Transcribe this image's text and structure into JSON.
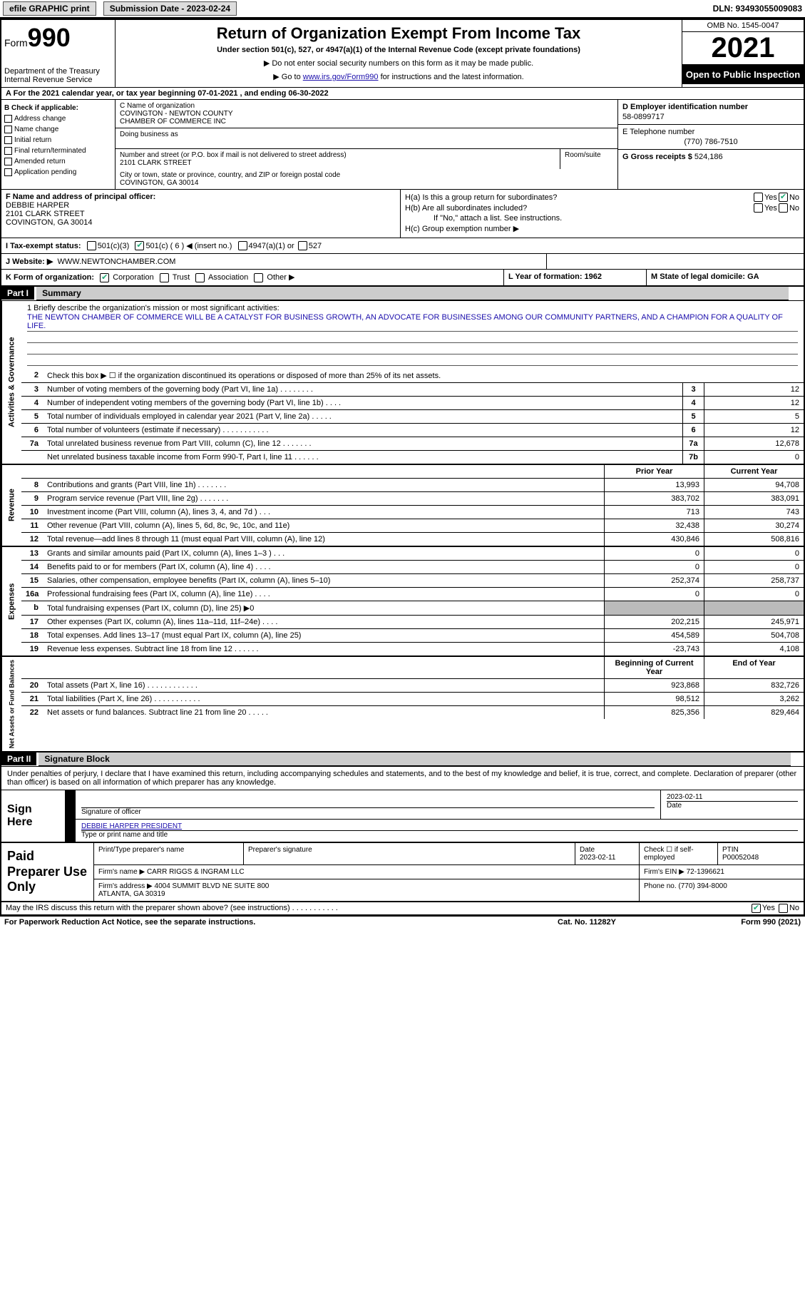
{
  "hdr": {
    "efile": "efile GRAPHIC print",
    "sub_label": "Submission Date - 2023-02-24",
    "dln": "DLN: 93493055009083"
  },
  "top": {
    "form_word": "Form",
    "form_num": "990",
    "dept": "Department of the Treasury\nInternal Revenue Service",
    "title": "Return of Organization Exempt From Income Tax",
    "subtitle": "Under section 501(c), 527, or 4947(a)(1) of the Internal Revenue Code (except private foundations)",
    "note1": "▶ Do not enter social security numbers on this form as it may be made public.",
    "note2_pre": "▶ Go to ",
    "note2_link": "www.irs.gov/Form990",
    "note2_post": " for instructions and the latest information.",
    "omb": "OMB No. 1545-0047",
    "year": "2021",
    "inspect": "Open to Public Inspection"
  },
  "rowA": "A For the 2021 calendar year, or tax year beginning 07-01-2021    , and ending 06-30-2022",
  "colB": {
    "hdr": "B Check if applicable:",
    "opts": [
      "Address change",
      "Name change",
      "Initial return",
      "Final return/terminated",
      "Amended return",
      "Application pending"
    ]
  },
  "colC": {
    "name_lbl": "C Name of organization",
    "name": "COVINGTON - NEWTON COUNTY\nCHAMBER OF COMMERCE INC",
    "dba_lbl": "Doing business as",
    "addr_lbl": "Number and street (or P.O. box if mail is not delivered to street address)",
    "addr": "2101 CLARK STREET",
    "room_lbl": "Room/suite",
    "city_lbl": "City or town, state or province, country, and ZIP or foreign postal code",
    "city": "COVINGTON, GA  30014"
  },
  "colD": {
    "ein_lbl": "D Employer identification number",
    "ein": "58-0899717",
    "tel_lbl": "E Telephone number",
    "tel": "(770) 786-7510",
    "gross_lbl": "G Gross receipts $",
    "gross": "524,186"
  },
  "blockF": {
    "lbl": "F Name and address of principal officer:",
    "name": "DEBBIE HARPER",
    "addr1": "2101 CLARK STREET",
    "addr2": "COVINGTON, GA  30014"
  },
  "blockH": {
    "a": "H(a)  Is this a group return for subordinates?",
    "b": "H(b)  Are all subordinates included?",
    "b_note": "If \"No,\" attach a list. See instructions.",
    "c": "H(c)  Group exemption number ▶",
    "yes": "Yes",
    "no": "No"
  },
  "rowI": {
    "lbl": "I   Tax-exempt status:",
    "o1": "501(c)(3)",
    "o2": "501(c) ( 6 ) ◀ (insert no.)",
    "o3": "4947(a)(1) or",
    "o4": "527"
  },
  "rowJ": {
    "lbl": "J   Website: ▶",
    "val": "WWW.NEWTONCHAMBER.COM"
  },
  "rowK": {
    "lbl": "K Form of organization:",
    "opts": [
      "Corporation",
      "Trust",
      "Association",
      "Other ▶"
    ],
    "l": "L Year of formation: 1962",
    "m": "M State of legal domicile: GA"
  },
  "part1": {
    "tag": "Part I",
    "title": "Summary"
  },
  "mission": {
    "lbl": "1   Briefly describe the organization's mission or most significant activities:",
    "text": "THE NEWTON CHAMBER OF COMMERCE WILL BE A CATALYST FOR BUSINESS GROWTH, AN ADVOCATE FOR BUSINESSES AMONG OUR COMMUNITY PARTNERS, AND A CHAMPION FOR A QUALITY OF LIFE."
  },
  "line2": "Check this box ▶ ☐ if the organization discontinued its operations or disposed of more than 25% of its net assets.",
  "gov_lines": [
    {
      "n": "3",
      "t": "Number of voting members of the governing body (Part VI, line 1a)  .   .   .   .   .   .   .   .",
      "b": "3",
      "v": "12"
    },
    {
      "n": "4",
      "t": "Number of independent voting members of the governing body (Part VI, line 1b)  .   .   .   .",
      "b": "4",
      "v": "12"
    },
    {
      "n": "5",
      "t": "Total number of individuals employed in calendar year 2021 (Part V, line 2a)  .   .   .   .   .",
      "b": "5",
      "v": "5"
    },
    {
      "n": "6",
      "t": "Total number of volunteers (estimate if necessary)   .   .   .   .   .   .   .   .   .   .   .",
      "b": "6",
      "v": "12"
    },
    {
      "n": "7a",
      "t": "Total unrelated business revenue from Part VIII, column (C), line 12   .   .   .   .   .   .   .",
      "b": "7a",
      "v": "12,678"
    },
    {
      "n": "",
      "t": "Net unrelated business taxable income from Form 990-T, Part I, line 11  .   .   .   .   .   .",
      "b": "7b",
      "v": "0"
    }
  ],
  "section_hdrs": {
    "gov": "Activities & Governance",
    "rev": "Revenue",
    "exp": "Expenses",
    "net": "Net Assets or Fund Balances"
  },
  "col_hdrs": {
    "prior": "Prior Year",
    "curr": "Current Year",
    "beg": "Beginning of Current Year",
    "end": "End of Year"
  },
  "rev_lines": [
    {
      "n": "8",
      "t": "Contributions and grants (Part VIII, line 1h)   .   .   .   .   .   .   .",
      "p": "13,993",
      "c": "94,708"
    },
    {
      "n": "9",
      "t": "Program service revenue (Part VIII, line 2g)   .   .   .   .   .   .   .",
      "p": "383,702",
      "c": "383,091"
    },
    {
      "n": "10",
      "t": "Investment income (Part VIII, column (A), lines 3, 4, and 7d )   .   .   .",
      "p": "713",
      "c": "743"
    },
    {
      "n": "11",
      "t": "Other revenue (Part VIII, column (A), lines 5, 6d, 8c, 9c, 10c, and 11e)",
      "p": "32,438",
      "c": "30,274"
    },
    {
      "n": "12",
      "t": "Total revenue—add lines 8 through 11 (must equal Part VIII, column (A), line 12)",
      "p": "430,846",
      "c": "508,816"
    }
  ],
  "exp_lines": [
    {
      "n": "13",
      "t": "Grants and similar amounts paid (Part IX, column (A), lines 1–3 )  .   .   .",
      "p": "0",
      "c": "0"
    },
    {
      "n": "14",
      "t": "Benefits paid to or for members (Part IX, column (A), line 4)  .   .   .   .",
      "p": "0",
      "c": "0"
    },
    {
      "n": "15",
      "t": "Salaries, other compensation, employee benefits (Part IX, column (A), lines 5–10)",
      "p": "252,374",
      "c": "258,737"
    },
    {
      "n": "16a",
      "t": "Professional fundraising fees (Part IX, column (A), line 11e)  .   .   .   .",
      "p": "0",
      "c": "0"
    },
    {
      "n": "b",
      "t": "Total fundraising expenses (Part IX, column (D), line 25) ▶0",
      "p": "",
      "c": "",
      "shade": true
    },
    {
      "n": "17",
      "t": "Other expenses (Part IX, column (A), lines 11a–11d, 11f–24e)  .   .   .   .",
      "p": "202,215",
      "c": "245,971"
    },
    {
      "n": "18",
      "t": "Total expenses. Add lines 13–17 (must equal Part IX, column (A), line 25)",
      "p": "454,589",
      "c": "504,708"
    },
    {
      "n": "19",
      "t": "Revenue less expenses. Subtract line 18 from line 12  .   .   .   .   .   .",
      "p": "-23,743",
      "c": "4,108"
    }
  ],
  "net_lines": [
    {
      "n": "20",
      "t": "Total assets (Part X, line 16)  .   .   .   .   .   .   .   .   .   .   .   .",
      "p": "923,868",
      "c": "832,726"
    },
    {
      "n": "21",
      "t": "Total liabilities (Part X, line 26)  .   .   .   .   .   .   .   .   .   .   .",
      "p": "98,512",
      "c": "3,262"
    },
    {
      "n": "22",
      "t": "Net assets or fund balances. Subtract line 21 from line 20  .   .   .   .   .",
      "p": "825,356",
      "c": "829,464"
    }
  ],
  "part2": {
    "tag": "Part II",
    "title": "Signature Block"
  },
  "sig": {
    "intro": "Under penalties of perjury, I declare that I have examined this return, including accompanying schedules and statements, and to the best of my knowledge and belief, it is true, correct, and complete. Declaration of preparer (other than officer) is based on all information of which preparer has any knowledge.",
    "sign_here": "Sign Here",
    "sig_lbl": "Signature of officer",
    "date_lbl": "Date",
    "date": "2023-02-11",
    "name": "DEBBIE HARPER  PRESIDENT",
    "name_lbl": "Type or print name and title"
  },
  "prep": {
    "hdr": "Paid Preparer Use Only",
    "c1": "Print/Type preparer's name",
    "c2": "Preparer's signature",
    "c3": "Date\n2023-02-11",
    "c4": "Check ☐ if self-employed",
    "c5_lbl": "PTIN",
    "c5": "P00052048",
    "firm_lbl": "Firm's name     ▶",
    "firm": "CARR RIGGS & INGRAM LLC",
    "ein_lbl": "Firm's EIN ▶",
    "ein": "72-1396621",
    "addr_lbl": "Firm's address ▶",
    "addr": "4004 SUMMIT BLVD NE SUITE 800\nATLANTA, GA  30319",
    "phone_lbl": "Phone no.",
    "phone": "(770) 394-8000"
  },
  "footer": {
    "q": "May the IRS discuss this return with the preparer shown above? (see instructions)  .   .   .   .   .   .   .   .   .   .   .",
    "yes": "Yes",
    "no": "No",
    "pra": "For Paperwork Reduction Act Notice, see the separate instructions.",
    "cat": "Cat. No. 11282Y",
    "form": "Form 990 (2021)"
  }
}
